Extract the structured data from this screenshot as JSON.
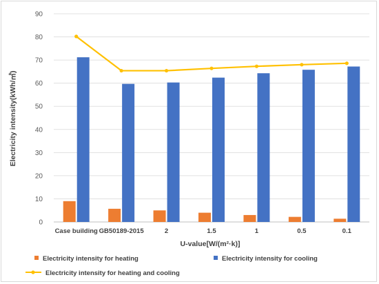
{
  "chart_data": {
    "type": "bar",
    "title": "",
    "xlabel": "U-value[W/(m²·k)]",
    "ylabel": "Electricity intensity(kWh/㎡)",
    "ylim": [
      0,
      90
    ],
    "yticks": [
      0,
      10,
      20,
      30,
      40,
      50,
      60,
      70,
      80,
      90
    ],
    "grid": true,
    "legend": "bottom",
    "categories": [
      "Case building",
      "GB50189-2015",
      "2",
      "1.5",
      "1",
      "0.5",
      "0.1"
    ],
    "series": [
      {
        "name": "Electricity intensity for heating",
        "type": "bar",
        "color": "#ed7d31",
        "values": [
          9.0,
          5.7,
          5.0,
          4.0,
          3.0,
          2.2,
          1.4
        ]
      },
      {
        "name": "Electricity intensity for cooling",
        "type": "bar",
        "color": "#4472c4",
        "values": [
          71.2,
          59.7,
          60.3,
          62.4,
          64.3,
          65.8,
          67.2
        ]
      },
      {
        "name": "Electricity intensity for heating and cooling",
        "type": "line",
        "color": "#ffc000",
        "values": [
          80.2,
          65.4,
          65.4,
          66.4,
          67.3,
          68.0,
          68.6
        ]
      }
    ]
  }
}
